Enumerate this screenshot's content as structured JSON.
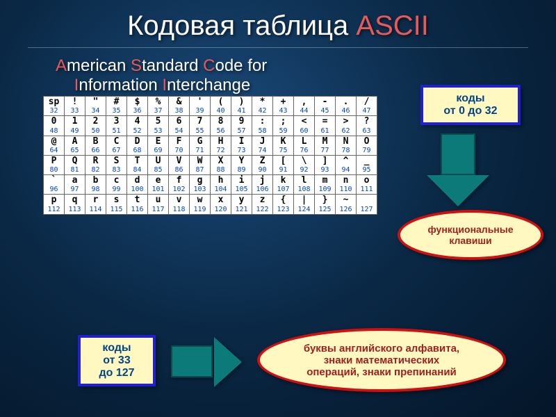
{
  "title": {
    "prefix": "Кодовая таблица ",
    "accent": "ASCII"
  },
  "subtitle": {
    "parts": [
      "A",
      "merican ",
      "S",
      "tandard ",
      "C",
      "ode for",
      "I",
      "nformation ",
      "I",
      "nterchange"
    ]
  },
  "box1": {
    "line1": "коды",
    "line2": "от 0 до 32"
  },
  "box2": {
    "line1": "коды",
    "line2": "от 33",
    "line3": "до 127"
  },
  "ellipse1": {
    "line1": "функциональные",
    "line2": "клавиши"
  },
  "ellipse2": {
    "line1": "буквы английского алфавита,",
    "line2": "знаки математических",
    "line3": "операций, знаки препинаний"
  },
  "colors": {
    "accent": "#e85a5a",
    "box_border": "#2020d0",
    "ellipse_border": "#d01010",
    "callout_bg": "#fff8c0",
    "arrow_fill": "#0d7a7a"
  },
  "ascii": {
    "start": 32,
    "cols": 16,
    "rows": 6,
    "chars": [
      "sp",
      "!",
      "\"",
      "#",
      "$",
      "%",
      "&",
      "'",
      "(",
      ")",
      "*",
      "+",
      ",",
      "-",
      ".",
      "/",
      "0",
      "1",
      "2",
      "3",
      "4",
      "5",
      "6",
      "7",
      "8",
      "9",
      ":",
      ";",
      "<",
      "=",
      ">",
      "?",
      "@",
      "A",
      "B",
      "C",
      "D",
      "E",
      "F",
      "G",
      "H",
      "I",
      "J",
      "K",
      "L",
      "M",
      "N",
      "O",
      "P",
      "Q",
      "R",
      "S",
      "T",
      "U",
      "V",
      "W",
      "X",
      "Y",
      "Z",
      "[",
      "\\",
      "]",
      "^",
      "_",
      "`",
      "a",
      "b",
      "c",
      "d",
      "e",
      "f",
      "g",
      "h",
      "i",
      "j",
      "k",
      "l",
      "m",
      "n",
      "o",
      "p",
      "q",
      "r",
      "s",
      "t",
      "u",
      "v",
      "w",
      "x",
      "y",
      "z",
      "{",
      "|",
      "}",
      "~",
      " "
    ]
  }
}
